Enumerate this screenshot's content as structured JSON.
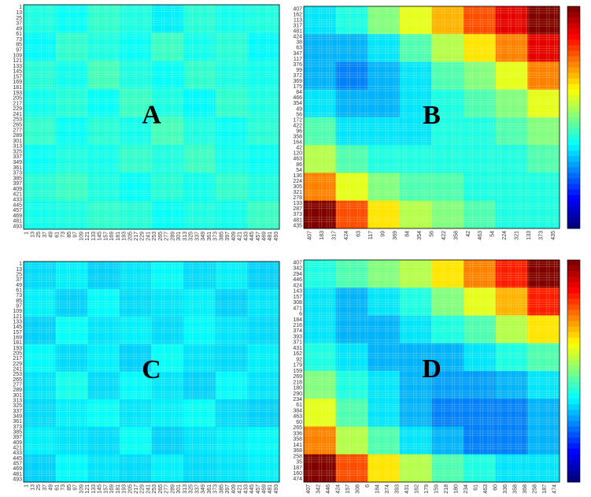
{
  "chart_data": [
    {
      "type": "heatmap",
      "label": "A",
      "colormap": "jet",
      "row_labels": [
        1,
        13,
        25,
        37,
        49,
        61,
        73,
        85,
        97,
        109,
        121,
        133,
        145,
        157,
        169,
        181,
        193,
        205,
        217,
        229,
        241,
        253,
        265,
        277,
        289,
        301,
        313,
        325,
        337,
        349,
        361,
        373,
        385,
        397,
        409,
        421,
        433,
        445,
        457,
        469,
        481,
        493
      ],
      "col_labels": [
        1,
        13,
        25,
        37,
        49,
        61,
        73,
        85,
        97,
        109,
        121,
        133,
        145,
        157,
        169,
        181,
        193,
        205,
        217,
        229,
        241,
        253,
        265,
        277,
        289,
        301,
        313,
        325,
        337,
        349,
        361,
        373,
        385,
        397,
        409,
        421,
        433,
        445,
        457,
        469,
        481,
        493
      ],
      "values": [
        [
          0.4,
          0.38,
          0.42,
          0.4,
          0.36,
          0.41,
          0.39,
          0.4
        ],
        [
          0.37,
          0.42,
          0.4,
          0.38,
          0.43,
          0.39,
          0.41,
          0.37
        ],
        [
          0.41,
          0.39,
          0.44,
          0.4,
          0.38,
          0.42,
          0.4,
          0.39
        ],
        [
          0.39,
          0.41,
          0.38,
          0.43,
          0.4,
          0.37,
          0.42,
          0.4
        ],
        [
          0.42,
          0.38,
          0.41,
          0.39,
          0.44,
          0.4,
          0.38,
          0.41
        ],
        [
          0.38,
          0.4,
          0.39,
          0.42,
          0.4,
          0.43,
          0.39,
          0.38
        ],
        [
          0.41,
          0.43,
          0.4,
          0.38,
          0.41,
          0.39,
          0.42,
          0.4
        ],
        [
          0.39,
          0.4,
          0.42,
          0.41,
          0.38,
          0.4,
          0.39,
          0.43
        ]
      ]
    },
    {
      "type": "heatmap",
      "label": "B",
      "colormap": "jet",
      "row_labels": [
        407,
        162,
        113,
        317,
        481,
        424,
        38,
        63,
        347,
        117,
        376,
        99,
        372,
        369,
        175,
        84,
        466,
        354,
        49,
        56,
        172,
        422,
        96,
        358,
        164,
        42,
        120,
        463,
        86,
        54,
        136,
        224,
        305,
        321,
        278,
        133,
        287,
        373,
        481,
        435
      ],
      "col_labels": [
        407,
        183,
        317,
        424,
        63,
        117,
        99,
        369,
        84,
        354,
        56,
        422,
        358,
        42,
        463,
        54,
        224,
        321,
        133,
        373,
        435
      ],
      "values": [
        [
          0.35,
          0.4,
          0.5,
          0.6,
          0.7,
          0.8,
          0.9,
          1
        ],
        [
          0.3,
          0.3,
          0.35,
          0.45,
          0.55,
          0.65,
          0.75,
          0.9
        ],
        [
          0.3,
          0.25,
          0.3,
          0.35,
          0.45,
          0.5,
          0.6,
          0.75
        ],
        [
          0.35,
          0.3,
          0.3,
          0.35,
          0.4,
          0.45,
          0.5,
          0.6
        ],
        [
          0.45,
          0.35,
          0.35,
          0.35,
          0.4,
          0.4,
          0.45,
          0.5
        ],
        [
          0.55,
          0.45,
          0.4,
          0.4,
          0.4,
          0.4,
          0.4,
          0.45
        ],
        [
          0.75,
          0.6,
          0.5,
          0.45,
          0.45,
          0.4,
          0.4,
          0.4
        ],
        [
          1,
          0.8,
          0.65,
          0.55,
          0.5,
          0.45,
          0.4,
          0.4
        ]
      ]
    },
    {
      "type": "heatmap",
      "label": "C",
      "colormap": "jet",
      "row_labels": [
        1,
        13,
        25,
        37,
        49,
        61,
        73,
        85,
        97,
        109,
        121,
        133,
        145,
        157,
        169,
        181,
        193,
        205,
        217,
        229,
        241,
        253,
        265,
        277,
        289,
        301,
        313,
        325,
        337,
        349,
        361,
        373,
        385,
        397,
        409,
        421,
        433,
        445,
        457,
        469,
        481,
        493
      ],
      "col_labels": [
        1,
        13,
        25,
        37,
        49,
        61,
        73,
        85,
        97,
        109,
        121,
        133,
        145,
        157,
        169,
        181,
        193,
        205,
        217,
        229,
        241,
        253,
        265,
        277,
        289,
        301,
        313,
        325,
        337,
        349,
        361,
        373,
        385,
        397,
        409,
        421,
        433,
        445,
        457,
        469,
        481,
        493
      ],
      "values": [
        [
          0.34,
          0.36,
          0.33,
          0.35,
          0.37,
          0.34,
          0.36,
          0.33
        ],
        [
          0.36,
          0.33,
          0.37,
          0.34,
          0.35,
          0.36,
          0.33,
          0.35
        ],
        [
          0.33,
          0.38,
          0.35,
          0.36,
          0.34,
          0.37,
          0.35,
          0.34
        ],
        [
          0.37,
          0.34,
          0.36,
          0.33,
          0.38,
          0.35,
          0.34,
          0.36
        ],
        [
          0.35,
          0.39,
          0.34,
          0.37,
          0.35,
          0.33,
          0.37,
          0.35
        ],
        [
          0.34,
          0.36,
          0.38,
          0.35,
          0.36,
          0.38,
          0.34,
          0.33
        ],
        [
          0.36,
          0.35,
          0.34,
          0.38,
          0.33,
          0.35,
          0.36,
          0.37
        ],
        [
          0.33,
          0.37,
          0.35,
          0.34,
          0.36,
          0.34,
          0.35,
          0.36
        ]
      ]
    },
    {
      "type": "heatmap",
      "label": "D",
      "colormap": "jet",
      "row_labels": [
        407,
        342,
        294,
        446,
        424,
        143,
        157,
        308,
        471,
        6,
        184,
        216,
        374,
        393,
        371,
        431,
        162,
        92,
        179,
        159,
        269,
        218,
        180,
        290,
        234,
        61,
        384,
        463,
        60,
        265,
        336,
        358,
        141,
        368,
        258,
        35,
        187,
        160,
        474
      ],
      "col_labels": [
        407,
        342,
        446,
        424,
        157,
        308,
        6,
        184,
        374,
        393,
        431,
        162,
        179,
        159,
        218,
        180,
        234,
        61,
        463,
        60,
        336,
        358,
        368,
        258,
        187,
        474
      ],
      "values": [
        [
          0.4,
          0.45,
          0.5,
          0.55,
          0.65,
          0.75,
          0.85,
          1
        ],
        [
          0.35,
          0.3,
          0.35,
          0.4,
          0.5,
          0.6,
          0.7,
          0.85
        ],
        [
          0.35,
          0.3,
          0.3,
          0.35,
          0.4,
          0.45,
          0.55,
          0.65
        ],
        [
          0.4,
          0.35,
          0.3,
          0.3,
          0.3,
          0.35,
          0.4,
          0.45
        ],
        [
          0.5,
          0.4,
          0.35,
          0.3,
          0.28,
          0.28,
          0.3,
          0.35
        ],
        [
          0.6,
          0.45,
          0.35,
          0.3,
          0.25,
          0.25,
          0.25,
          0.3
        ],
        [
          0.75,
          0.55,
          0.45,
          0.35,
          0.3,
          0.25,
          0.25,
          0.3
        ],
        [
          1,
          0.8,
          0.65,
          0.55,
          0.45,
          0.4,
          0.35,
          0.35
        ]
      ]
    }
  ]
}
